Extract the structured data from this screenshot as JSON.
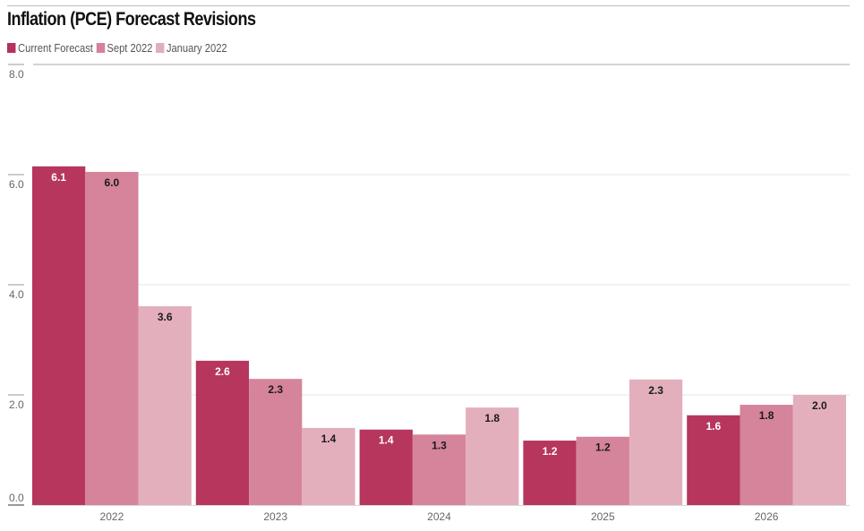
{
  "chart_data": {
    "type": "bar",
    "title": "Inflation (PCE) Forecast Revisions",
    "xlabel": "",
    "ylabel": "",
    "categories": [
      "2022",
      "2023",
      "2024",
      "2025",
      "2026"
    ],
    "series": [
      {
        "name": "Current Forecast",
        "color": "#b5325a",
        "label_color": "#ffffff",
        "values": [
          6.15,
          2.62,
          1.37,
          1.17,
          1.63
        ],
        "labels": [
          "6.1",
          "2.6",
          "1.4",
          "1.2",
          "1.6"
        ]
      },
      {
        "name": "Sept 2022",
        "color": "#d48299",
        "label_color": "#1a1a1a",
        "values": [
          6.05,
          2.29,
          1.28,
          1.24,
          1.82
        ],
        "labels": [
          "6.0",
          "2.3",
          "1.3",
          "1.2",
          "1.8"
        ]
      },
      {
        "name": "January 2022",
        "color": "#e2adbc",
        "label_color": "#1a1a1a",
        "values": [
          3.61,
          1.4,
          1.77,
          2.28,
          2.0
        ],
        "labels": [
          "3.6",
          "1.4",
          "1.8",
          "2.3",
          "2.0"
        ]
      }
    ],
    "ylim": [
      0,
      8
    ],
    "yticks": [
      0,
      2,
      4,
      6,
      8
    ],
    "ytick_labels": [
      "0.0",
      "2.0",
      "4.0",
      "6.0",
      "8.0"
    ],
    "grid": true,
    "legend_position": "top-left"
  }
}
